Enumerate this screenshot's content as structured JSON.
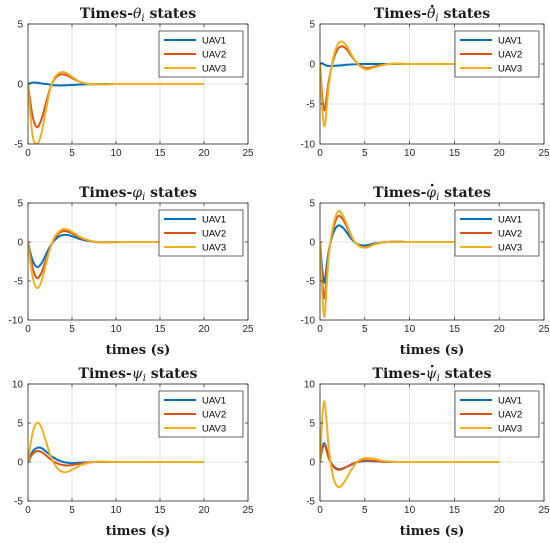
{
  "series_colors": [
    "#0072BD",
    "#D95319",
    "#EDB120"
  ],
  "chart_data": [
    {
      "type": "line",
      "title": {
        "prefix": "Times-",
        "symbol": "θ",
        "dot": false,
        "sub": "i",
        "suffix": " states"
      },
      "xlabel": "",
      "xlim": [
        0,
        25
      ],
      "ylim": [
        -5,
        5
      ],
      "xticks": [
        0,
        5,
        10,
        15,
        20,
        25
      ],
      "yticks": [
        -5,
        0,
        5
      ],
      "grid": true,
      "legend": "top-right",
      "x": [
        0,
        0.5,
        1,
        1.5,
        2,
        2.5,
        3,
        3.5,
        4,
        4.5,
        5,
        5.5,
        6,
        6.5,
        7,
        8,
        9,
        10,
        12,
        14,
        16,
        18,
        20
      ],
      "series": [
        {
          "name": "UAV1",
          "values": [
            0,
            0.12,
            0.1,
            0.05,
            0,
            -0.05,
            -0.1,
            -0.12,
            -0.12,
            -0.1,
            -0.08,
            -0.06,
            -0.04,
            -0.03,
            -0.02,
            -0.01,
            0,
            0,
            0,
            0,
            0,
            0,
            0
          ]
        },
        {
          "name": "UAV2",
          "values": [
            0,
            -2.6,
            -3.6,
            -3.0,
            -1.7,
            -0.4,
            0.4,
            0.75,
            0.8,
            0.7,
            0.5,
            0.3,
            0.15,
            0.05,
            0,
            -0.03,
            -0.02,
            0,
            0,
            0,
            0,
            0,
            0
          ]
        },
        {
          "name": "UAV3",
          "values": [
            0,
            -4.2,
            -5.0,
            -4.2,
            -2.3,
            -0.5,
            0.5,
            0.9,
            1.0,
            0.85,
            0.6,
            0.35,
            0.15,
            0.05,
            0,
            -0.03,
            -0.02,
            0,
            0,
            0,
            0,
            0,
            0
          ]
        }
      ]
    },
    {
      "type": "line",
      "title": {
        "prefix": "Times-",
        "symbol": "θ",
        "dot": true,
        "sub": "i",
        "suffix": " states"
      },
      "xlabel": "",
      "xlim": [
        0,
        25
      ],
      "ylim": [
        -10,
        5
      ],
      "xticks": [
        0,
        5,
        10,
        15,
        20,
        25
      ],
      "yticks": [
        -10,
        -5,
        0,
        5
      ],
      "grid": true,
      "legend": "top-right",
      "x": [
        0,
        0.25,
        0.5,
        0.75,
        1,
        1.5,
        2,
        2.5,
        3,
        3.5,
        4,
        4.5,
        5,
        5.5,
        6,
        7,
        8,
        9,
        10,
        12,
        14,
        16,
        18,
        20
      ],
      "series": [
        {
          "name": "UAV1",
          "values": [
            0,
            0.1,
            -0.1,
            -0.2,
            -0.25,
            -0.25,
            -0.2,
            -0.15,
            -0.1,
            -0.05,
            -0.02,
            0,
            0,
            0,
            0,
            0,
            0,
            0,
            0,
            0,
            0,
            0,
            0,
            0
          ]
        },
        {
          "name": "UAV2",
          "values": [
            0,
            -4.0,
            -5.8,
            -4.0,
            -2.0,
            0.5,
            1.9,
            2.2,
            1.8,
            1.0,
            0.3,
            -0.2,
            -0.5,
            -0.5,
            -0.35,
            -0.1,
            0.02,
            0.03,
            0,
            0,
            0,
            0,
            0,
            0
          ]
        },
        {
          "name": "UAV3",
          "values": [
            0,
            -5.5,
            -7.8,
            -5.5,
            -2.5,
            0.8,
            2.5,
            2.8,
            2.2,
            1.2,
            0.3,
            -0.3,
            -0.65,
            -0.65,
            -0.45,
            -0.15,
            0.02,
            0.04,
            0,
            0,
            0,
            0,
            0,
            0
          ]
        }
      ]
    },
    {
      "type": "line",
      "title": {
        "prefix": "Times-",
        "symbol": "φ",
        "dot": false,
        "sub": "i",
        "suffix": " states"
      },
      "xlabel": "times (s)",
      "xlim": [
        0,
        25
      ],
      "ylim": [
        -10,
        5
      ],
      "xticks": [
        0,
        5,
        10,
        15,
        20,
        25
      ],
      "yticks": [
        -10,
        -5,
        0,
        5
      ],
      "grid": true,
      "legend": "top-right",
      "x": [
        0,
        0.5,
        1,
        1.5,
        2,
        2.5,
        3,
        3.5,
        4,
        4.5,
        5,
        5.5,
        6,
        7,
        8,
        9,
        10,
        12,
        14,
        16,
        18,
        20
      ],
      "series": [
        {
          "name": "UAV1",
          "values": [
            0,
            -2.3,
            -3.2,
            -2.8,
            -1.7,
            -0.6,
            0.2,
            0.7,
            0.9,
            0.9,
            0.75,
            0.55,
            0.35,
            0.1,
            -0.02,
            -0.03,
            0,
            0,
            0,
            0,
            0,
            0
          ]
        },
        {
          "name": "UAV2",
          "values": [
            0,
            -3.2,
            -4.6,
            -4.0,
            -2.4,
            -0.8,
            0.4,
            1.1,
            1.4,
            1.35,
            1.1,
            0.8,
            0.5,
            0.15,
            -0.02,
            -0.04,
            -0.01,
            0,
            0,
            0,
            0,
            0
          ]
        },
        {
          "name": "UAV3",
          "values": [
            0,
            -4.3,
            -5.9,
            -5.1,
            -3.0,
            -0.9,
            0.6,
            1.3,
            1.65,
            1.6,
            1.3,
            0.95,
            0.6,
            0.18,
            -0.03,
            -0.05,
            -0.01,
            0,
            0,
            0,
            0,
            0
          ]
        }
      ]
    },
    {
      "type": "line",
      "title": {
        "prefix": "Times-",
        "symbol": "φ",
        "dot": true,
        "sub": "i",
        "suffix": " states"
      },
      "xlabel": "times (s)",
      "xlim": [
        0,
        25
      ],
      "ylim": [
        -10,
        5
      ],
      "xticks": [
        0,
        5,
        10,
        15,
        20,
        25
      ],
      "yticks": [
        -10,
        -5,
        0,
        5
      ],
      "grid": true,
      "legend": "top-right",
      "x": [
        0,
        0.25,
        0.5,
        0.75,
        1,
        1.5,
        2,
        2.5,
        3,
        3.5,
        4,
        4.5,
        5,
        5.5,
        6,
        7,
        8,
        9,
        10,
        12,
        14,
        16,
        18,
        20
      ],
      "series": [
        {
          "name": "UAV1",
          "values": [
            0,
            -3.5,
            -5.2,
            -3.0,
            -1.0,
            1.2,
            2.1,
            1.9,
            1.2,
            0.4,
            -0.15,
            -0.4,
            -0.45,
            -0.35,
            -0.2,
            -0.05,
            0.02,
            0.02,
            0,
            0,
            0,
            0,
            0,
            0
          ]
        },
        {
          "name": "UAV2",
          "values": [
            0,
            -5.0,
            -7.2,
            -4.2,
            -1.2,
            1.8,
            3.3,
            3.0,
            1.9,
            0.7,
            -0.15,
            -0.55,
            -0.65,
            -0.5,
            -0.3,
            -0.05,
            0.03,
            0.02,
            0,
            0,
            0,
            0,
            0,
            0
          ]
        },
        {
          "name": "UAV3",
          "values": [
            0,
            -6.5,
            -9.6,
            -5.5,
            -1.5,
            2.2,
            3.9,
            3.5,
            2.2,
            0.8,
            -0.15,
            -0.6,
            -0.75,
            -0.6,
            -0.35,
            -0.05,
            0.03,
            0.02,
            0,
            0,
            0,
            0,
            0,
            0
          ]
        }
      ]
    },
    {
      "type": "line",
      "title": {
        "prefix": "Times-",
        "symbol": "ψ",
        "dot": false,
        "sub": "i",
        "suffix": " states"
      },
      "xlabel": "times (s)",
      "xlim": [
        0,
        25
      ],
      "ylim": [
        -5,
        10
      ],
      "xticks": [
        0,
        5,
        10,
        15,
        20,
        25
      ],
      "yticks": [
        -5,
        0,
        5,
        10
      ],
      "grid": true,
      "legend": "top-right",
      "x": [
        0,
        0.5,
        1,
        1.5,
        2,
        2.5,
        3,
        3.5,
        4,
        4.5,
        5,
        5.5,
        6,
        7,
        8,
        9,
        10,
        12,
        14,
        16,
        18,
        20
      ],
      "series": [
        {
          "name": "UAV1",
          "values": [
            0,
            1.3,
            1.8,
            1.8,
            1.4,
            0.9,
            0.5,
            0.2,
            0.0,
            -0.1,
            -0.15,
            -0.12,
            -0.08,
            -0.03,
            0,
            0,
            0,
            0,
            0,
            0,
            0,
            0
          ]
        },
        {
          "name": "UAV2",
          "values": [
            0,
            1.0,
            1.4,
            1.3,
            0.9,
            0.4,
            0.0,
            -0.25,
            -0.4,
            -0.45,
            -0.4,
            -0.3,
            -0.2,
            -0.05,
            0.02,
            0.01,
            0,
            0,
            0,
            0,
            0,
            0
          ]
        },
        {
          "name": "UAV3",
          "values": [
            0,
            3.6,
            5.0,
            4.5,
            2.8,
            1.0,
            -0.3,
            -1.0,
            -1.3,
            -1.25,
            -1.0,
            -0.7,
            -0.4,
            -0.08,
            0.05,
            0.04,
            0.01,
            0,
            0,
            0,
            0,
            0
          ]
        }
      ]
    },
    {
      "type": "line",
      "title": {
        "prefix": "Times-",
        "symbol": "ψ",
        "dot": true,
        "sub": "i",
        "suffix": " states"
      },
      "xlabel": "times (s)",
      "xlim": [
        0,
        25
      ],
      "ylim": [
        -5,
        10
      ],
      "xticks": [
        0,
        5,
        10,
        15,
        20,
        25
      ],
      "yticks": [
        -5,
        0,
        5,
        10
      ],
      "grid": true,
      "legend": "top-right",
      "x": [
        0,
        0.25,
        0.5,
        0.75,
        1,
        1.5,
        2,
        2.5,
        3,
        3.5,
        4,
        4.5,
        5,
        5.5,
        6,
        7,
        8,
        9,
        10,
        12,
        14,
        16,
        18,
        20
      ],
      "series": [
        {
          "name": "UAV1",
          "values": [
            0,
            1.8,
            2.4,
            1.6,
            0.5,
            -0.5,
            -0.9,
            -0.85,
            -0.6,
            -0.35,
            -0.1,
            0.05,
            0.12,
            0.12,
            0.1,
            0.04,
            0.01,
            0,
            0,
            0,
            0,
            0,
            0,
            0
          ]
        },
        {
          "name": "UAV2",
          "values": [
            0,
            1.6,
            2.2,
            1.4,
            0.4,
            -0.6,
            -1.0,
            -0.9,
            -0.6,
            -0.3,
            -0.05,
            0.12,
            0.2,
            0.2,
            0.15,
            0.05,
            0.01,
            0,
            0,
            0,
            0,
            0,
            0,
            0
          ]
        },
        {
          "name": "UAV3",
          "values": [
            0,
            5.5,
            7.8,
            5.0,
            1.5,
            -2.0,
            -3.2,
            -2.9,
            -2.0,
            -1.0,
            -0.2,
            0.3,
            0.5,
            0.5,
            0.4,
            0.15,
            0.03,
            0,
            0,
            0,
            0,
            0,
            0,
            0
          ]
        }
      ]
    }
  ]
}
